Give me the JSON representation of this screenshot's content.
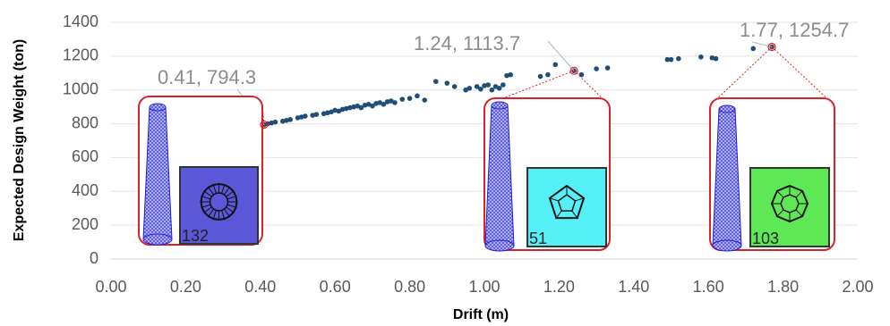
{
  "chart_data": {
    "type": "scatter",
    "x_label": "Drift (m)",
    "y_label": "Expected Design Weight (ton)",
    "color": "#1f4e79",
    "grid": true,
    "xlim": [
      0,
      2
    ],
    "ylim": [
      0,
      1400
    ],
    "xticks": [
      {
        "value": 0,
        "label": "0.00"
      },
      {
        "value": 0.2,
        "label": "0.20"
      },
      {
        "value": 0.4,
        "label": "0.40"
      },
      {
        "value": 0.6,
        "label": "0.60"
      },
      {
        "value": 0.8,
        "label": "0.80"
      },
      {
        "value": 1,
        "label": "1.00"
      },
      {
        "value": 1.2,
        "label": "1.20"
      },
      {
        "value": 1.4,
        "label": "1.40"
      },
      {
        "value": 1.6,
        "label": "1.60"
      },
      {
        "value": 1.8,
        "label": "1.80"
      },
      {
        "value": 2,
        "label": "2.00"
      }
    ],
    "yticks": [
      0,
      200,
      400,
      600,
      800,
      1000,
      1200,
      1400
    ],
    "x": [
      0.41,
      0.42,
      0.43,
      0.44,
      0.46,
      0.47,
      0.48,
      0.5,
      0.51,
      0.52,
      0.54,
      0.55,
      0.57,
      0.58,
      0.59,
      0.6,
      0.61,
      0.62,
      0.63,
      0.64,
      0.65,
      0.66,
      0.67,
      0.68,
      0.69,
      0.7,
      0.71,
      0.72,
      0.73,
      0.74,
      0.75,
      0.76,
      0.78,
      0.8,
      0.82,
      0.84,
      0.87,
      0.9,
      0.92,
      0.95,
      0.96,
      0.98,
      0.99,
      1.0,
      1.01,
      1.02,
      1.03,
      1.04,
      1.05,
      1.06,
      1.07,
      1.15,
      1.17,
      1.19,
      1.24,
      1.26,
      1.3,
      1.33,
      1.49,
      1.5,
      1.52,
      1.58,
      1.61,
      1.62,
      1.72,
      1.77
    ],
    "values": [
      794.3,
      800,
      805,
      810,
      815,
      820,
      825,
      835,
      840,
      845,
      850,
      855,
      860,
      865,
      870,
      880,
      875,
      885,
      890,
      895,
      900,
      905,
      895,
      910,
      915,
      905,
      920,
      925,
      915,
      930,
      935,
      925,
      945,
      950,
      965,
      940,
      1050,
      1040,
      1020,
      1000,
      1010,
      1020,
      1005,
      1025,
      1030,
      1000,
      1020,
      1010,
      1030,
      1085,
      1090,
      1080,
      1090,
      1150,
      1113.7,
      1090,
      1125,
      1130,
      1180,
      1180,
      1185,
      1195,
      1190,
      1185,
      1245,
      1254.7
    ],
    "annotations": [
      {
        "x": 0.41,
        "y": 794.3,
        "text": "0.41, 794.3",
        "design": "132",
        "color": "#5b57d9"
      },
      {
        "x": 1.24,
        "y": 1113.7,
        "text": "1.24,  1113.7",
        "design": "51",
        "color": "#55f0f7"
      },
      {
        "x": 1.77,
        "y": 1254.7,
        "text": "1.77,  1254.7",
        "design": "103",
        "color": "#5fe855"
      }
    ]
  }
}
